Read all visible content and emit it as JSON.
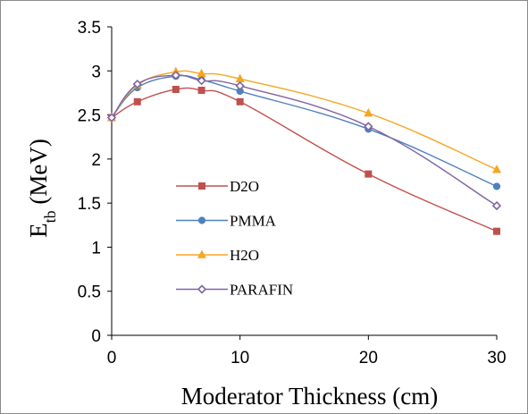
{
  "chart_data": {
    "type": "line",
    "xlabel": "Moderator Thickness (cm)",
    "ylabel": {
      "main": "E",
      "sub": "tb",
      "unit": " (MeV)"
    },
    "xlim": [
      0,
      30
    ],
    "ylim": [
      0,
      3.5
    ],
    "xticks": [
      "0",
      "10",
      "20",
      "30"
    ],
    "xtick_values": [
      0,
      10,
      20,
      30
    ],
    "yticks": [
      "0",
      "0.5",
      "1",
      "1.5",
      "2",
      "2.5",
      "3",
      "3.5"
    ],
    "ytick_values": [
      0,
      0.5,
      1,
      1.5,
      2,
      2.5,
      3,
      3.5
    ],
    "grid": false,
    "legend_placement": "center-left",
    "x": [
      0,
      2,
      5,
      7,
      10,
      20,
      30
    ],
    "series": [
      {
        "name": "D2O",
        "color": "#c0504d",
        "marker": "square",
        "values": [
          2.47,
          2.65,
          2.79,
          2.78,
          2.65,
          1.83,
          1.18
        ]
      },
      {
        "name": "PMMA",
        "color": "#4f81bd",
        "marker": "circle",
        "values": [
          2.47,
          2.81,
          2.94,
          2.9,
          2.77,
          2.34,
          1.69
        ]
      },
      {
        "name": "H2O",
        "color": "#f5a623",
        "marker": "triangle",
        "values": [
          2.47,
          2.84,
          2.99,
          2.97,
          2.91,
          2.52,
          1.88
        ]
      },
      {
        "name": "PARAFIN",
        "color": "#8064a2",
        "marker": "diamond",
        "values": [
          2.47,
          2.85,
          2.95,
          2.89,
          2.83,
          2.37,
          1.47
        ]
      }
    ]
  }
}
